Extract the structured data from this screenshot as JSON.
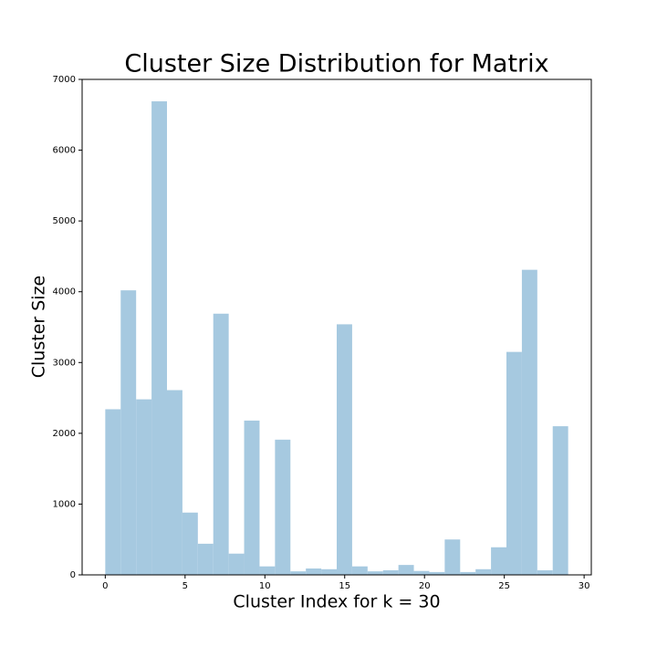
{
  "chart_data": {
    "type": "histogram",
    "title": "Cluster Size Distribution for Matrix",
    "xlabel": "Cluster Index for k = 30",
    "ylabel": "Cluster Size",
    "bins": [
      0,
      0.9667,
      1.9333,
      2.9,
      3.8667,
      4.8333,
      5.8,
      6.7667,
      7.7333,
      8.7,
      9.6667,
      10.6333,
      11.6,
      12.5667,
      13.5333,
      14.5,
      15.4667,
      16.4333,
      17.4,
      18.3667,
      19.3333,
      20.3,
      21.2667,
      22.2333,
      23.2,
      24.1667,
      25.1333,
      26.1,
      27.0667,
      28.0333,
      29
    ],
    "values": [
      2340,
      4020,
      2480,
      6690,
      2610,
      880,
      440,
      3690,
      300,
      2180,
      120,
      1910,
      50,
      90,
      80,
      3540,
      120,
      50,
      65,
      140,
      55,
      40,
      500,
      40,
      80,
      390,
      3150,
      4310,
      65,
      2100
    ],
    "color": "#a6c9e0",
    "xlim": [
      -1.45,
      30.45
    ],
    "ylim": [
      0,
      7000
    ],
    "xticks": [
      0,
      5,
      10,
      15,
      20,
      25,
      30
    ],
    "yticks": [
      0,
      1000,
      2000,
      3000,
      4000,
      5000,
      6000,
      7000
    ],
    "grid": false
  }
}
